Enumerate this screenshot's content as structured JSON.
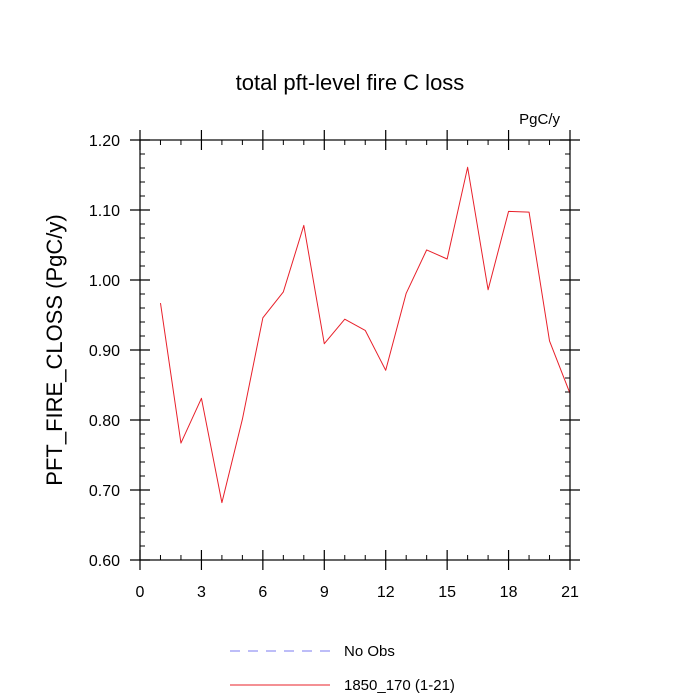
{
  "chart_data": {
    "type": "line",
    "title": "total pft-level fire C loss",
    "units": "PgC/y",
    "xlabel": "",
    "ylabel": "PFT_FIRE_CLOSS  (PgC/y)",
    "xlim": [
      0,
      21
    ],
    "ylim": [
      0.6,
      1.2
    ],
    "x_ticks": [
      0,
      3,
      6,
      9,
      12,
      15,
      18,
      21
    ],
    "x_tick_labels": [
      "0",
      "3",
      "6",
      "9",
      "12",
      "15",
      "18",
      "21"
    ],
    "y_ticks": [
      0.6,
      0.7,
      0.8,
      0.9,
      1.0,
      1.1,
      1.2
    ],
    "y_tick_labels": [
      "0.60",
      "0.70",
      "0.80",
      "0.90",
      "1.00",
      "1.10",
      "1.20"
    ],
    "series": [
      {
        "name": "No Obs",
        "color": "#7b7bf0",
        "style": "dashed",
        "x": [],
        "values": []
      },
      {
        "name": "1850_170 (1-21)",
        "color": "#e8202a",
        "style": "solid",
        "x": [
          1,
          2,
          3,
          4,
          5,
          6,
          7,
          8,
          9,
          10,
          11,
          12,
          13,
          14,
          15,
          16,
          17,
          18,
          19,
          20,
          21
        ],
        "values": [
          0.967,
          0.767,
          0.831,
          0.682,
          0.801,
          0.946,
          0.983,
          1.078,
          0.909,
          0.944,
          0.928,
          0.871,
          0.981,
          1.043,
          1.03,
          1.161,
          0.986,
          1.098,
          1.097,
          0.913,
          0.838
        ]
      }
    ],
    "legend": [
      {
        "label": "No Obs",
        "color": "#7b7bf0",
        "style": "dashed"
      },
      {
        "label": "1850_170 (1-21)",
        "color": "#e8202a",
        "style": "solid"
      }
    ]
  }
}
